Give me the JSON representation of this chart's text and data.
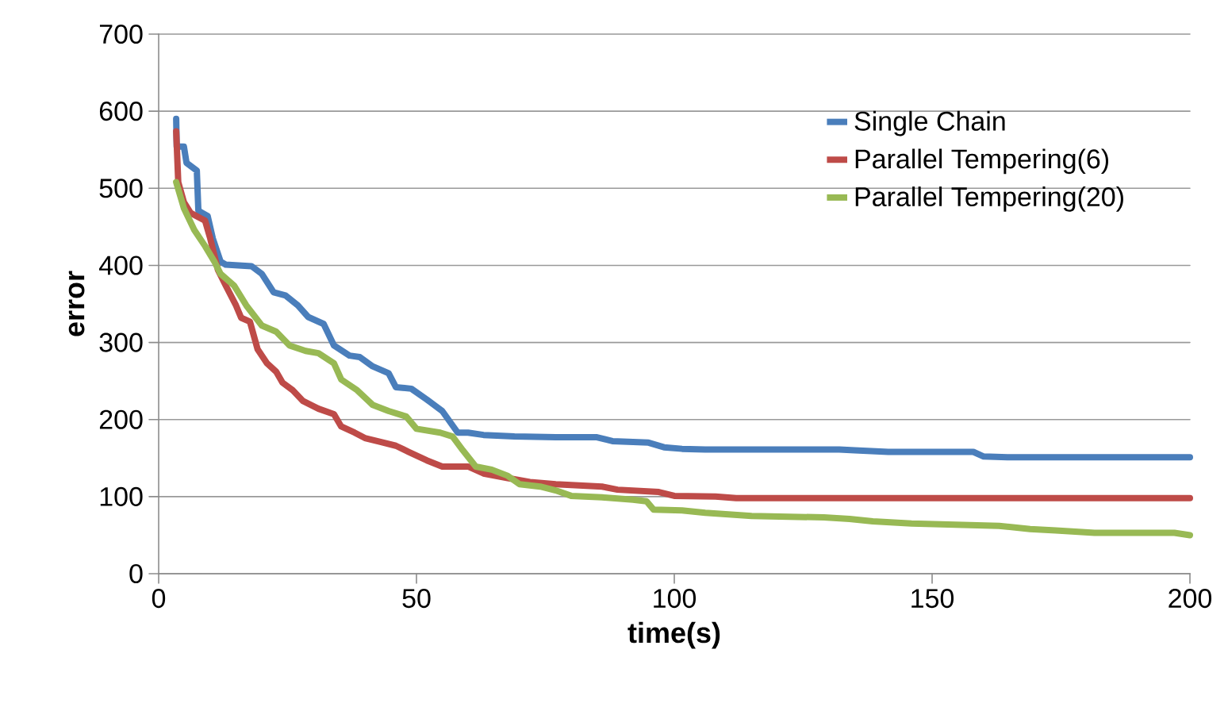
{
  "chart_data": {
    "type": "line",
    "xlabel": "time(s)",
    "ylabel": "error",
    "xlim": [
      0,
      200
    ],
    "xticks": [
      0,
      50,
      100,
      150,
      200
    ],
    "ylim": [
      0,
      700
    ],
    "yticks": [
      0,
      100,
      200,
      300,
      400,
      500,
      600,
      700
    ],
    "grid": "y",
    "legend": "top right",
    "marker": "none",
    "line_style": "solid",
    "series": [
      {
        "name": "Single Chain",
        "color": "#4a7ebb",
        "x": [
          3.4,
          3.5,
          4.9,
          5.4,
          7.4,
          7.7,
          9.5,
          10.5,
          12,
          13,
          18,
          20,
          22.3,
          24.6,
          27,
          29,
          32,
          34,
          37,
          39,
          41.5,
          44.6,
          46,
          49,
          52,
          55,
          58,
          60,
          63,
          69,
          77,
          85,
          88,
          95,
          98,
          101.5,
          106,
          132,
          135,
          141.5,
          158,
          160,
          164.6,
          200
        ],
        "values": [
          590,
          554,
          554,
          533,
          523,
          471,
          464,
          435,
          405,
          401,
          399,
          389,
          365,
          361,
          348,
          333,
          324,
          296,
          283,
          281,
          269,
          260,
          242,
          240,
          226,
          211,
          183,
          183,
          180,
          178,
          177,
          177,
          172,
          170,
          164,
          162,
          161,
          161,
          160,
          158,
          158,
          152,
          151,
          151
        ]
      },
      {
        "name": "Parallel Tempering(6)",
        "color": "#be4b48",
        "x": [
          3.4,
          3.8,
          4.9,
          6.2,
          9,
          10,
          11.5,
          13,
          15,
          16,
          17.7,
          19.2,
          21,
          22.8,
          24,
          26,
          28,
          31,
          34,
          35.4,
          38,
          40,
          43,
          46,
          48.5,
          52,
          55,
          60,
          63,
          67.7,
          72,
          77,
          86,
          89,
          97,
          100,
          108,
          112,
          200
        ],
        "values": [
          574,
          508,
          482,
          468,
          458,
          435,
          394,
          374,
          348,
          332,
          327,
          291,
          273,
          262,
          248,
          238,
          224,
          214,
          207,
          191,
          183,
          176,
          171,
          166,
          158,
          147,
          139,
          139,
          130,
          124,
          119,
          116,
          113,
          109,
          106,
          101,
          100,
          98,
          98
        ]
      },
      {
        "name": "Parallel Tempering(20)",
        "color": "#98b954",
        "x": [
          3.4,
          4.9,
          6.9,
          9,
          10.8,
          12,
          14.6,
          17,
          20,
          22.8,
          25.4,
          28.5,
          31,
          34,
          35.4,
          38.5,
          41.5,
          44.6,
          48,
          50,
          54.6,
          57,
          59,
          61.5,
          64.6,
          67.7,
          70,
          74,
          77,
          80,
          86,
          92,
          94.6,
          96,
          101.5,
          106,
          115,
          129,
          134,
          138.5,
          146,
          163,
          169,
          174,
          181.5,
          197,
          200
        ],
        "values": [
          508,
          474,
          446,
          425,
          405,
          389,
          374,
          348,
          322,
          314,
          296,
          289,
          286,
          273,
          252,
          238,
          219,
          211,
          204,
          188,
          183,
          178,
          160,
          139,
          135,
          127,
          116,
          113,
          108,
          101,
          99,
          96,
          94,
          83,
          82,
          79,
          75,
          73,
          71,
          68,
          65,
          62,
          58,
          56,
          53,
          53,
          50
        ]
      }
    ]
  }
}
